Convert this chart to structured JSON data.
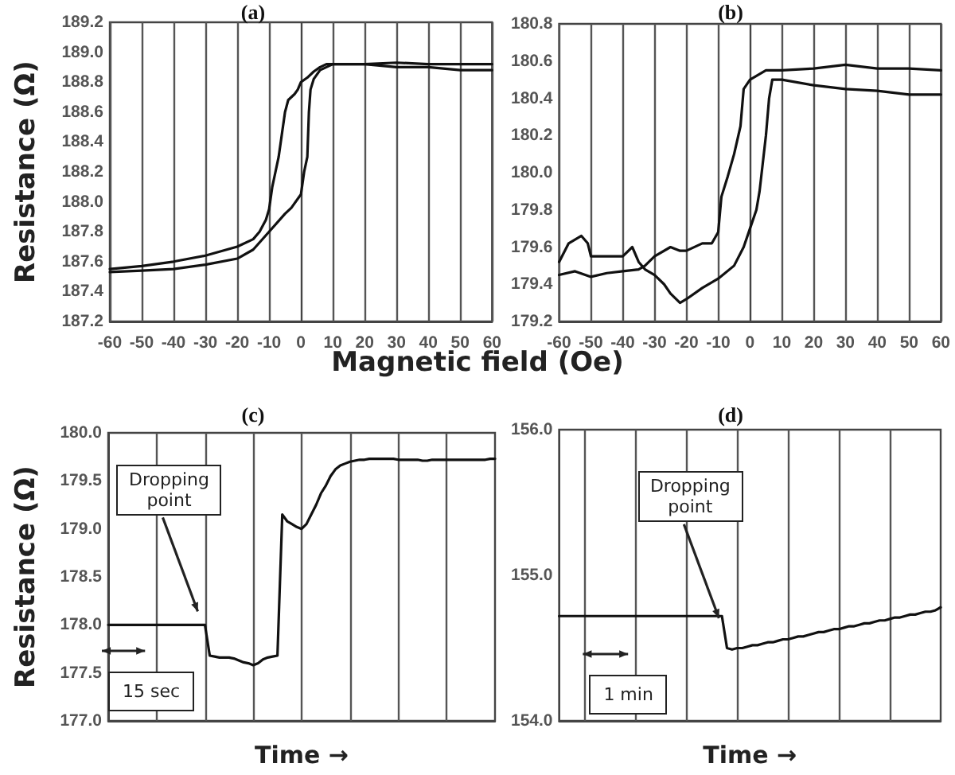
{
  "chart_data": [
    {
      "type": "line",
      "title": "(a)",
      "xlabel": "Magnetic field (Oe)",
      "ylabel": "Resistance (Ω)",
      "xlim": [
        -60,
        60
      ],
      "xticks": [
        -60,
        -50,
        -40,
        -30,
        -20,
        -10,
        0,
        10,
        20,
        30,
        40,
        50,
        60
      ],
      "ylim": [
        187.2,
        189.2
      ],
      "yticks": [
        187.2,
        187.4,
        187.6,
        187.8,
        {
          "value": 188,
          "label": "188.0"
        },
        188.2,
        188.4,
        188.6,
        188.8,
        {
          "value": 189,
          "label": "189.0"
        },
        189.2
      ],
      "grid": "x",
      "marker": "none",
      "series": [
        {
          "color": "#111111",
          "x": [
            -60,
            -50,
            -40,
            -30,
            -20,
            -15,
            -13,
            -11,
            -10,
            -9,
            -8,
            -7,
            -6,
            -5,
            -4,
            -3,
            -2,
            -1,
            0,
            2,
            4,
            6,
            8,
            10,
            20,
            30,
            40,
            50,
            60
          ],
          "values": [
            187.55,
            187.57,
            187.6,
            187.64,
            187.7,
            187.75,
            187.8,
            187.88,
            187.95,
            188.1,
            188.2,
            188.3,
            188.45,
            188.6,
            188.68,
            188.7,
            188.72,
            188.75,
            188.8,
            188.83,
            188.87,
            188.9,
            188.92,
            188.92,
            188.92,
            188.9,
            188.9,
            188.88,
            188.88
          ]
        },
        {
          "color": "#111111",
          "x": [
            -60,
            -50,
            -40,
            -30,
            -20,
            -15,
            -10,
            -5,
            -3,
            0,
            1,
            2,
            2.5,
            3,
            4,
            6,
            8,
            10,
            20,
            30,
            40,
            50,
            60
          ],
          "values": [
            187.53,
            187.54,
            187.55,
            187.58,
            187.62,
            187.68,
            187.8,
            187.92,
            187.96,
            188.05,
            188.2,
            188.3,
            188.6,
            188.75,
            188.82,
            188.88,
            188.9,
            188.92,
            188.92,
            188.93,
            188.92,
            188.92,
            188.92
          ]
        }
      ]
    },
    {
      "type": "line",
      "title": "(b)",
      "xlim": [
        -60,
        60
      ],
      "xticks": [
        -60,
        -50,
        -40,
        -30,
        -20,
        -10,
        0,
        10,
        20,
        30,
        40,
        50,
        60
      ],
      "ylim": [
        179.2,
        180.8
      ],
      "yticks": [
        179.2,
        179.4,
        179.6,
        179.8,
        {
          "value": 180,
          "label": "180.0"
        },
        180.2,
        180.4,
        180.6,
        180.8
      ],
      "grid": "x",
      "marker": "none",
      "series": [
        {
          "color": "#111111",
          "x": [
            -60,
            -57,
            -53,
            -51,
            -50,
            -45,
            -40,
            -37,
            -35,
            -33,
            -30,
            -27,
            -25,
            -22,
            -20,
            -15,
            -10,
            -5,
            -2,
            0,
            2,
            3,
            4,
            5,
            6,
            7,
            10,
            20,
            30,
            40,
            50,
            60
          ],
          "values": [
            179.52,
            179.62,
            179.66,
            179.62,
            179.55,
            179.55,
            179.55,
            179.6,
            179.52,
            179.48,
            179.45,
            179.4,
            179.35,
            179.3,
            179.32,
            179.38,
            179.43,
            179.5,
            179.6,
            179.7,
            179.8,
            179.9,
            180.05,
            180.2,
            180.4,
            180.5,
            180.5,
            180.47,
            180.45,
            180.44,
            180.42,
            180.42
          ]
        },
        {
          "color": "#111111",
          "x": [
            -60,
            -55,
            -50,
            -45,
            -40,
            -35,
            -33,
            -30,
            -25,
            -22,
            -20,
            -15,
            -12,
            -10,
            -9,
            -7,
            -5,
            -3,
            -2,
            0,
            5,
            10,
            20,
            30,
            40,
            50,
            60
          ],
          "values": [
            179.45,
            179.47,
            179.44,
            179.46,
            179.47,
            179.48,
            179.5,
            179.55,
            179.6,
            179.58,
            179.58,
            179.62,
            179.62,
            179.68,
            179.87,
            179.98,
            180.1,
            180.25,
            180.45,
            180.5,
            180.55,
            180.55,
            180.56,
            180.58,
            180.56,
            180.56,
            180.55
          ]
        }
      ]
    },
    {
      "type": "line",
      "title": "(c)",
      "xlabel": "Time →",
      "ylabel": "Resistance (Ω)",
      "categories": [
        null,
        null,
        null,
        null,
        null,
        null,
        null,
        null,
        null,
        null,
        null,
        null,
        null,
        null,
        null,
        null,
        null,
        null,
        null,
        null,
        null,
        null,
        null,
        null,
        null,
        null,
        null,
        null,
        null,
        null,
        null,
        null,
        null,
        null,
        null,
        null,
        null,
        null,
        null,
        null,
        null,
        null,
        null,
        null,
        null,
        null,
        null,
        null,
        null,
        null,
        null,
        null,
        null,
        null,
        null,
        null,
        null,
        null,
        null,
        null,
        null,
        null,
        null,
        null,
        null,
        null,
        null,
        null,
        null,
        null,
        null,
        null,
        null,
        null,
        null,
        null,
        null,
        null,
        null,
        null,
        null
      ],
      "ylim": [
        177,
        180
      ],
      "yticks": [
        {
          "value": 177,
          "label": "177.0"
        },
        177.5,
        {
          "value": 178,
          "label": "178.0"
        },
        178.5,
        {
          "value": 179,
          "label": "179.0"
        },
        179.5,
        {
          "value": 180,
          "label": "180.0"
        }
      ],
      "tick_labels": "y",
      "grid": "x",
      "marker": "none",
      "annotations": [
        "Dropping point",
        "15 sec"
      ],
      "series": [
        {
          "color": "#111111",
          "values": [
            178.0,
            178.0,
            178.0,
            178.0,
            178.0,
            178.0,
            178.0,
            178.0,
            178.0,
            178.0,
            178.0,
            178.0,
            178.0,
            178.0,
            178.0,
            178.0,
            178.0,
            178.0,
            178.0,
            178.0,
            178.0,
            177.68,
            177.67,
            177.66,
            177.66,
            177.66,
            177.65,
            177.63,
            177.61,
            177.6,
            177.58,
            177.6,
            177.64,
            177.66,
            177.67,
            177.68,
            179.15,
            179.08,
            179.05,
            179.02,
            179.0,
            179.05,
            179.15,
            179.25,
            179.37,
            179.45,
            179.55,
            179.62,
            179.66,
            179.68,
            179.7,
            179.71,
            179.72,
            179.72,
            179.73,
            179.73,
            179.73,
            179.73,
            179.73,
            179.73,
            179.72,
            179.72,
            179.72,
            179.72,
            179.72,
            179.71,
            179.71,
            179.72,
            179.72,
            179.72,
            179.72,
            179.72,
            179.72,
            179.72,
            179.72,
            179.72,
            179.72,
            179.72,
            179.72,
            179.73,
            179.73
          ]
        }
      ]
    },
    {
      "type": "line",
      "title": "(d)",
      "xlabel": "Time →",
      "categories": [
        null,
        null,
        null,
        null,
        null,
        null,
        null,
        null,
        null,
        null,
        null,
        null,
        null,
        null,
        null,
        null,
        null,
        null,
        null,
        null,
        null,
        null,
        null,
        null,
        null,
        null,
        null,
        null,
        null,
        null,
        null,
        null,
        null,
        null,
        null,
        null,
        null,
        null,
        null,
        null,
        null,
        null,
        null,
        null,
        null,
        null,
        null,
        null,
        null,
        null,
        null,
        null,
        null,
        null,
        null,
        null,
        null,
        null,
        null,
        null,
        null,
        null,
        null,
        null,
        null,
        null,
        null,
        null,
        null,
        null,
        null,
        null,
        null,
        null,
        null,
        null
      ],
      "ylim": [
        154,
        156
      ],
      "yticks": [
        {
          "value": 154,
          "label": "154.0"
        },
        {
          "value": 155,
          "label": "155.0"
        },
        {
          "value": 156,
          "label": "156.0"
        }
      ],
      "tick_labels": "y",
      "grid": "x",
      "marker": "none",
      "annotations": [
        "Dropping point",
        "1 min"
      ],
      "series": [
        {
          "color": "#111111",
          "values": [
            154.72,
            154.72,
            154.72,
            154.72,
            154.72,
            154.72,
            154.72,
            154.72,
            154.72,
            154.72,
            154.72,
            154.72,
            154.72,
            154.72,
            154.72,
            154.72,
            154.72,
            154.72,
            154.72,
            154.72,
            154.72,
            154.72,
            154.72,
            154.72,
            154.72,
            154.72,
            154.72,
            154.72,
            154.72,
            154.72,
            154.72,
            154.72,
            154.72,
            154.5,
            154.49,
            154.5,
            154.5,
            154.51,
            154.52,
            154.52,
            154.53,
            154.54,
            154.54,
            154.55,
            154.56,
            154.56,
            154.57,
            154.58,
            154.58,
            154.59,
            154.6,
            154.61,
            154.61,
            154.62,
            154.63,
            154.63,
            154.64,
            154.65,
            154.65,
            154.66,
            154.67,
            154.67,
            154.68,
            154.69,
            154.69,
            154.7,
            154.71,
            154.71,
            154.72,
            154.73,
            154.73,
            154.74,
            154.75,
            154.75,
            154.76,
            154.78
          ]
        }
      ]
    }
  ]
}
